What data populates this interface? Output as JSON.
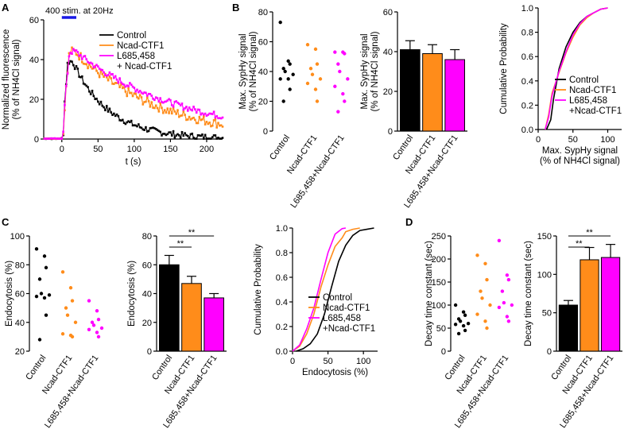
{
  "colors": {
    "control": "#000000",
    "ncad": "#FF8C1A",
    "l685": "#FF00FF",
    "stim": "#1A1AE6"
  },
  "panel_labels": {
    "a": "A",
    "b": "B",
    "c": "C",
    "d": "D"
  },
  "chart_data": [
    {
      "id": "A",
      "type": "line",
      "xlabel": "t (s)",
      "ylabel_lines": [
        "Normalized fluorescence",
        "(% of NH4Cl signal)"
      ],
      "xticks": [
        "0",
        "50",
        "100",
        "150",
        "200"
      ],
      "xtick_values": [
        0,
        50,
        100,
        150,
        200
      ],
      "yticks": [
        "0",
        "20",
        "40",
        "60"
      ],
      "ytick_values": [
        0,
        20,
        40,
        60
      ],
      "xlim": [
        -25,
        222
      ],
      "ylim": [
        0,
        60
      ],
      "annotation": "400 stim. at 20Hz",
      "stim_range": [
        0,
        20
      ],
      "legend": [
        {
          "label": "Control",
          "color_key": "control"
        },
        {
          "label": "Ncad-CTF1",
          "color_key": "ncad"
        },
        {
          "label": "L685,458",
          "color_key": "l685"
        },
        {
          "label": "+ Ncad-CTF1",
          "color_key": "none"
        }
      ],
      "series": [
        {
          "name": "Control",
          "color_key": "control",
          "peak": 39,
          "peak_t": 15,
          "tau": 50,
          "noise": 1.6
        },
        {
          "name": "Ncad-CTF1",
          "color_key": "ncad",
          "peak": 44,
          "peak_t": 19,
          "tau": 115,
          "noise": 2.4
        },
        {
          "name": "L685,458 + Ncad-CTF1",
          "color_key": "l685",
          "peak": 44,
          "peak_t": 19,
          "tau": 150,
          "noise": 1.6
        }
      ]
    },
    {
      "id": "B1",
      "type": "scatter",
      "ylabel_lines": [
        "Max. SypHy signal",
        "(% of NH4Cl signal)"
      ],
      "yticks": [
        "0",
        "20",
        "40",
        "60",
        "80"
      ],
      "ytick_values": [
        0,
        20,
        40,
        60,
        80
      ],
      "ylim": [
        0,
        80
      ],
      "categories": [
        "Control",
        "Ncad-CTF1",
        "L685,458+Ncad-CTF1"
      ],
      "series": [
        {
          "name": "Control",
          "color_key": "control",
          "values": [
            73,
            47,
            45,
            42,
            40,
            38,
            35,
            35,
            28,
            20
          ]
        },
        {
          "name": "Ncad-CTF1",
          "color_key": "ncad",
          "values": [
            58,
            55,
            45,
            42,
            38,
            35,
            32,
            28,
            20
          ]
        },
        {
          "name": "L685,458+Ncad-CTF1",
          "color_key": "l685",
          "values": [
            53,
            53,
            52,
            45,
            40,
            35,
            30,
            25,
            20,
            13
          ]
        }
      ]
    },
    {
      "id": "B2",
      "type": "bar",
      "ylabel_lines": [
        "Max. SypHy signal",
        "(% of NH4Cl signal)"
      ],
      "yticks": [
        "0",
        "20",
        "40",
        "60"
      ],
      "ytick_values": [
        0,
        20,
        40,
        60
      ],
      "ylim": [
        0,
        60
      ],
      "categories": [
        "Control",
        "Ncad-CTF1",
        "L685,458+Ncad-CTF1"
      ],
      "values": [
        41,
        39,
        36
      ],
      "errors": [
        4.5,
        4.5,
        5
      ],
      "color_keys": [
        "control",
        "ncad",
        "l685"
      ]
    },
    {
      "id": "B3",
      "type": "line",
      "xlabel_lines": [
        "Max. SypHy signal",
        "(% of NH4Cl signal)"
      ],
      "ylabel_lines": [
        "Cumulative Probability"
      ],
      "xticks": [
        "0",
        "50",
        "100"
      ],
      "xtick_values": [
        0,
        50,
        100
      ],
      "yticks": [
        "0.0",
        "0.2",
        "0.4",
        "0.6",
        "0.8",
        "1.0"
      ],
      "ytick_values": [
        0,
        0.2,
        0.4,
        0.6,
        0.8,
        1.0
      ],
      "xlim": [
        0,
        120
      ],
      "ylim": [
        0,
        1
      ],
      "legend": [
        {
          "label": "Control",
          "color_key": "control"
        },
        {
          "label": "Ncad-CTF1",
          "color_key": "ncad"
        },
        {
          "label": "L685,458",
          "color_key": "l685"
        },
        {
          "label": "+Ncad-CTF1",
          "color_key": "none"
        }
      ],
      "series": [
        {
          "name": "Control",
          "color_key": "control",
          "x": [
            12,
            18,
            22,
            30,
            40,
            50,
            60,
            70,
            80,
            90,
            100
          ],
          "y": [
            0,
            0.08,
            0.25,
            0.5,
            0.68,
            0.8,
            0.88,
            0.93,
            0.96,
            0.99,
            1.0
          ]
        },
        {
          "name": "Ncad-CTF1",
          "color_key": "ncad",
          "x": [
            10,
            15,
            20,
            30,
            40,
            50,
            60,
            70,
            80,
            90,
            100
          ],
          "y": [
            0,
            0.12,
            0.3,
            0.47,
            0.63,
            0.76,
            0.86,
            0.92,
            0.96,
            0.99,
            1.0
          ]
        },
        {
          "name": "L685,458+Ncad-CTF1",
          "color_key": "l685",
          "x": [
            10,
            15,
            20,
            30,
            40,
            50,
            60,
            70,
            80,
            90,
            100
          ],
          "y": [
            0,
            0.1,
            0.28,
            0.48,
            0.64,
            0.78,
            0.87,
            0.93,
            0.96,
            0.99,
            1.0
          ]
        }
      ]
    },
    {
      "id": "C1",
      "type": "scatter",
      "ylabel_lines": [
        "Endocytosis  (%)"
      ],
      "yticks": [
        "20",
        "40",
        "60",
        "80",
        "100"
      ],
      "ytick_values": [
        20,
        40,
        60,
        80,
        100
      ],
      "ylim": [
        20,
        100
      ],
      "categories": [
        "Control",
        "Ncad-CTF1",
        "L685,458+Ncad-CTF1"
      ],
      "series": [
        {
          "name": "Control",
          "color_key": "control",
          "values": [
            91,
            86,
            78,
            70,
            60,
            59,
            58,
            57,
            45,
            28
          ]
        },
        {
          "name": "Ncad-CTF1",
          "color_key": "ncad",
          "values": [
            75,
            64,
            55,
            50,
            45,
            40,
            32,
            31,
            30
          ]
        },
        {
          "name": "L685,458+Ncad-CTF1",
          "color_key": "l685",
          "values": [
            55,
            48,
            42,
            40,
            38,
            36,
            35,
            33,
            30
          ]
        }
      ]
    },
    {
      "id": "C2",
      "type": "bar",
      "ylabel_lines": [
        "Endocytosis  (%)"
      ],
      "yticks": [
        "0",
        "20",
        "40",
        "60",
        "80"
      ],
      "ytick_values": [
        0,
        20,
        40,
        60,
        80
      ],
      "ylim": [
        0,
        80
      ],
      "categories": [
        "Control",
        "Ncad-CTF1",
        "L685,458+Ncad-CTF1"
      ],
      "values": [
        60,
        47,
        37
      ],
      "errors": [
        6.5,
        5,
        3
      ],
      "color_keys": [
        "control",
        "ncad",
        "l685"
      ],
      "significance": [
        {
          "from": 0,
          "to": 1,
          "label": "**"
        },
        {
          "from": 0,
          "to": 2,
          "label": "**"
        }
      ]
    },
    {
      "id": "C3",
      "type": "line",
      "xlabel": "Endocytosis  (%)",
      "ylabel_lines": [
        "Cumulative Probability"
      ],
      "xticks": [
        "0",
        "50",
        "100"
      ],
      "xtick_values": [
        0,
        50,
        100
      ],
      "yticks": [
        "0.0",
        "0.2",
        "0.4",
        "0.6",
        "0.8",
        "1.0"
      ],
      "ytick_values": [
        0,
        0.2,
        0.4,
        0.6,
        0.8,
        1.0
      ],
      "xlim": [
        0,
        120
      ],
      "ylim": [
        0,
        1
      ],
      "legend": [
        {
          "label": "Control",
          "color_key": "control"
        },
        {
          "label": "Ncad-CTF1",
          "color_key": "ncad"
        },
        {
          "label": "L685,458",
          "color_key": "l685"
        },
        {
          "label": "+Ncad-CTF1",
          "color_key": "none"
        }
      ],
      "series": [
        {
          "name": "Control",
          "color_key": "control",
          "x": [
            5,
            15,
            25,
            35,
            45,
            55,
            65,
            75,
            85,
            95,
            105,
            115
          ],
          "y": [
            0,
            0.02,
            0.06,
            0.14,
            0.3,
            0.52,
            0.73,
            0.86,
            0.94,
            0.98,
            0.99,
            1.0
          ]
        },
        {
          "name": "Ncad-CTF1",
          "color_key": "ncad",
          "x": [
            0,
            10,
            20,
            30,
            40,
            50,
            60,
            70,
            75,
            85,
            95
          ],
          "y": [
            0,
            0.04,
            0.14,
            0.3,
            0.52,
            0.7,
            0.85,
            0.92,
            0.97,
            0.99,
            1.0
          ]
        },
        {
          "name": "L685,458+Ncad-CTF1",
          "color_key": "l685",
          "x": [
            0,
            10,
            20,
            30,
            40,
            50,
            60,
            70,
            75
          ],
          "y": [
            0,
            0.05,
            0.18,
            0.35,
            0.58,
            0.8,
            0.95,
            0.995,
            1.0
          ]
        }
      ]
    },
    {
      "id": "D1",
      "type": "scatter",
      "ylabel_lines": [
        "Decay time constant (sec)"
      ],
      "yticks": [
        "0",
        "50",
        "100",
        "150",
        "200",
        "250"
      ],
      "ytick_values": [
        0,
        50,
        100,
        150,
        200,
        250
      ],
      "ylim": [
        0,
        250
      ],
      "categories": [
        "Control",
        "Ncad-CTF1",
        "L685,458+Ncad-CTF1"
      ],
      "series": [
        {
          "name": "Control",
          "color_key": "control",
          "values": [
            100,
            85,
            78,
            70,
            65,
            60,
            58,
            55,
            45,
            38
          ]
        },
        {
          "name": "Ncad-CTF1",
          "color_key": "ncad",
          "values": [
            208,
            190,
            155,
            130,
            115,
            100,
            80,
            65,
            50
          ]
        },
        {
          "name": "L685,458+Ncad-CTF1",
          "color_key": "l685",
          "values": [
            240,
            165,
            155,
            130,
            105,
            100,
            95,
            75,
            65
          ]
        }
      ]
    },
    {
      "id": "D2",
      "type": "bar",
      "ylabel_lines": [
        "Decay time constant (sec)"
      ],
      "yticks": [
        "0",
        "50",
        "100",
        "150"
      ],
      "ytick_values": [
        0,
        50,
        100,
        150
      ],
      "ylim": [
        0,
        150
      ],
      "categories": [
        "Control",
        "Ncad-CTF1",
        "L685,458+Ncad-CTF1"
      ],
      "values": [
        60,
        119,
        122
      ],
      "errors": [
        6,
        16,
        17
      ],
      "color_keys": [
        "control",
        "ncad",
        "l685"
      ],
      "significance": [
        {
          "from": 0,
          "to": 1,
          "label": "**"
        },
        {
          "from": 0,
          "to": 2,
          "label": "**"
        }
      ]
    }
  ]
}
